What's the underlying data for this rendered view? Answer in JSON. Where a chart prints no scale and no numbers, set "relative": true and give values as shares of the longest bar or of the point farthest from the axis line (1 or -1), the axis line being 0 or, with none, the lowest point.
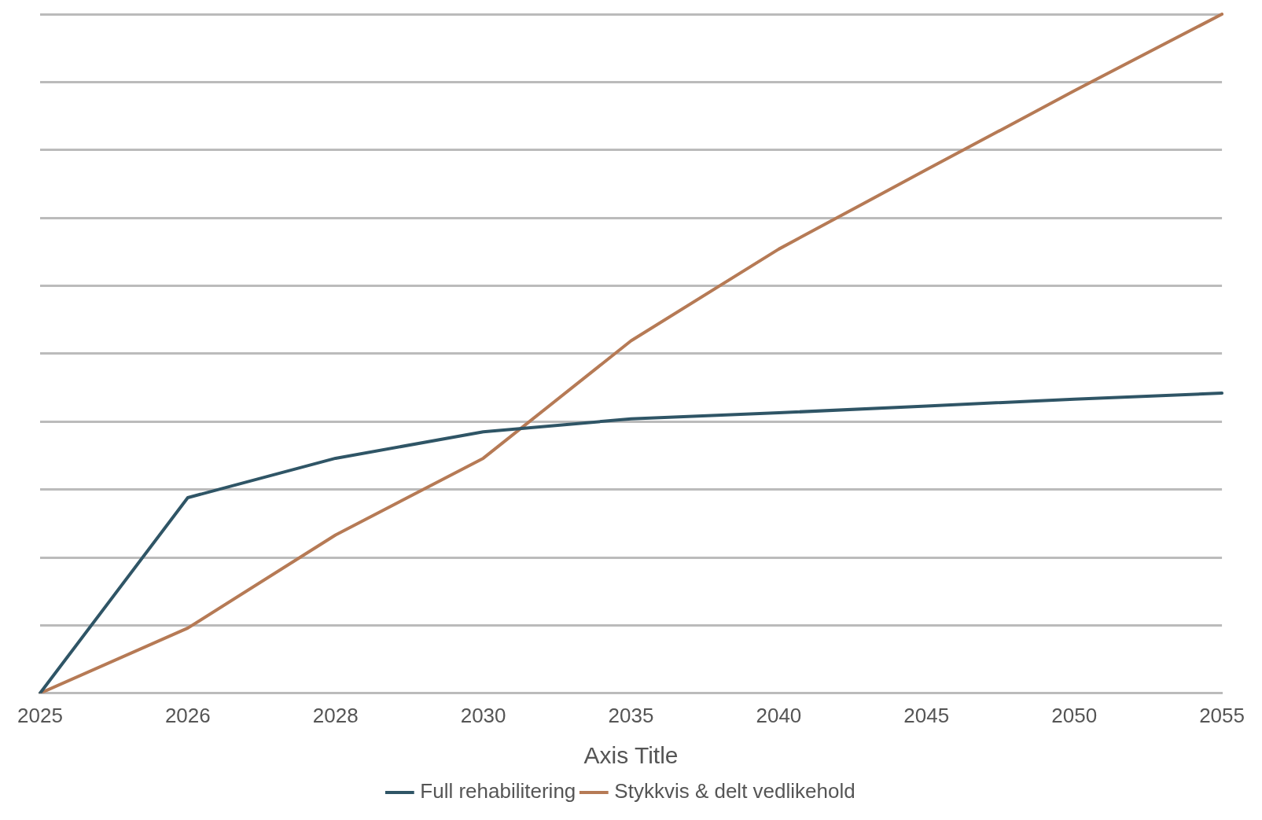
{
  "chart_data": {
    "type": "line",
    "relative": true,
    "xlabel": "Axis Title",
    "categories": [
      "2025",
      "2026",
      "2028",
      "2030",
      "2035",
      "2040",
      "2045",
      "2050",
      "2055"
    ],
    "series": [
      {
        "name": "Full rehabilitering",
        "color": "#2f5566",
        "values": [
          0,
          0.288,
          0.346,
          0.385,
          0.404,
          0.413,
          0.423,
          0.433,
          0.442
        ]
      },
      {
        "name": "Stykkvis & delt vedlikehold",
        "color": "#b67a55",
        "values": [
          0,
          0.096,
          0.233,
          0.346,
          0.519,
          0.654,
          0.771,
          0.887,
          1
        ]
      }
    ],
    "grid": "y",
    "legend": "bottom",
    "marker": "none",
    "line_style": "solid"
  }
}
